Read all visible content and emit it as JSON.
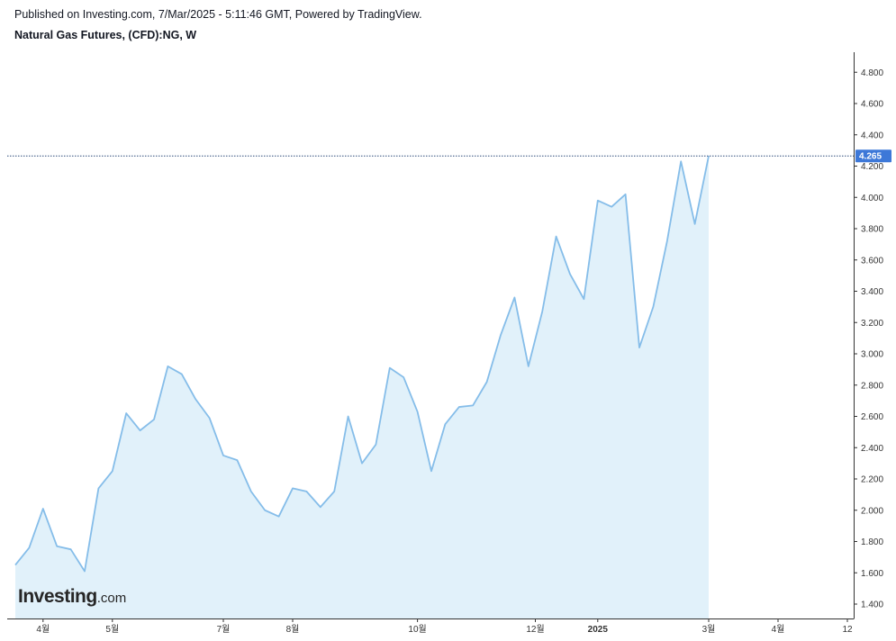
{
  "header": {
    "published": "Published on Investing.com, 7/Mar/2025 - 5:11:46 GMT, Powered by TradingView.",
    "title": "Natural Gas Futures, (CFD):NG, W"
  },
  "logo": {
    "main": "Investing",
    "suffix": ".com"
  },
  "colors": {
    "line": "#85bde9",
    "fill": "#e1f1fa",
    "price_line": "#2d4a7a",
    "price_tag": "#3d78d8",
    "axis": "#333333"
  },
  "chart_data": {
    "type": "area",
    "title": "Natural Gas Futures, (CFD):NG, W",
    "xlabel": "",
    "ylabel": "",
    "ylim": [
      1.3,
      4.9
    ],
    "grid": false,
    "current_price": 4.265,
    "current_price_label": "4.265",
    "y_ticks": [
      1.4,
      1.6,
      1.8,
      2.0,
      2.2,
      2.4,
      2.6,
      2.8,
      3.0,
      3.2,
      3.4,
      3.6,
      3.8,
      4.0,
      4.2,
      4.4,
      4.6,
      4.8
    ],
    "y_tick_labels": [
      "1.400",
      "1.600",
      "1.800",
      "2.000",
      "2.200",
      "2.400",
      "2.600",
      "2.800",
      "3.000",
      "3.200",
      "3.400",
      "3.600",
      "3.800",
      "4.000",
      "4.200",
      "4.400",
      "4.600",
      "4.800"
    ],
    "x_range": [
      0,
      60.6
    ],
    "x_ticks": [
      {
        "label": "4월",
        "week": 2.0,
        "bold": false
      },
      {
        "label": "5월",
        "week": 7.0,
        "bold": false
      },
      {
        "label": "7월",
        "week": 15.0,
        "bold": false
      },
      {
        "label": "8월",
        "week": 20.0,
        "bold": false
      },
      {
        "label": "10월",
        "week": 29.0,
        "bold": false
      },
      {
        "label": "12월",
        "week": 37.5,
        "bold": false
      },
      {
        "label": "2025",
        "week": 42.0,
        "bold": true
      },
      {
        "label": "3월",
        "week": 50.0,
        "bold": false
      },
      {
        "label": "4월",
        "week": 55.0,
        "bold": false
      },
      {
        "label": "12",
        "week": 60.0,
        "bold": false
      }
    ],
    "series": [
      {
        "values": [
          1.65,
          1.76,
          2.01,
          1.77,
          1.75,
          1.61,
          2.14,
          2.25,
          2.62,
          2.51,
          2.58,
          2.92,
          2.87,
          2.71,
          2.59,
          2.35,
          2.32,
          2.12,
          2.0,
          1.96,
          2.14,
          2.12,
          2.02,
          2.12,
          2.6,
          2.3,
          2.42,
          2.91,
          2.85,
          2.63,
          2.25,
          2.55,
          2.66,
          2.67,
          2.82,
          3.12,
          3.36,
          2.92,
          3.27,
          3.75,
          3.51,
          3.35,
          3.98,
          3.94,
          4.02,
          3.04,
          3.3,
          3.72,
          4.23,
          3.83,
          4.265
        ]
      }
    ]
  }
}
